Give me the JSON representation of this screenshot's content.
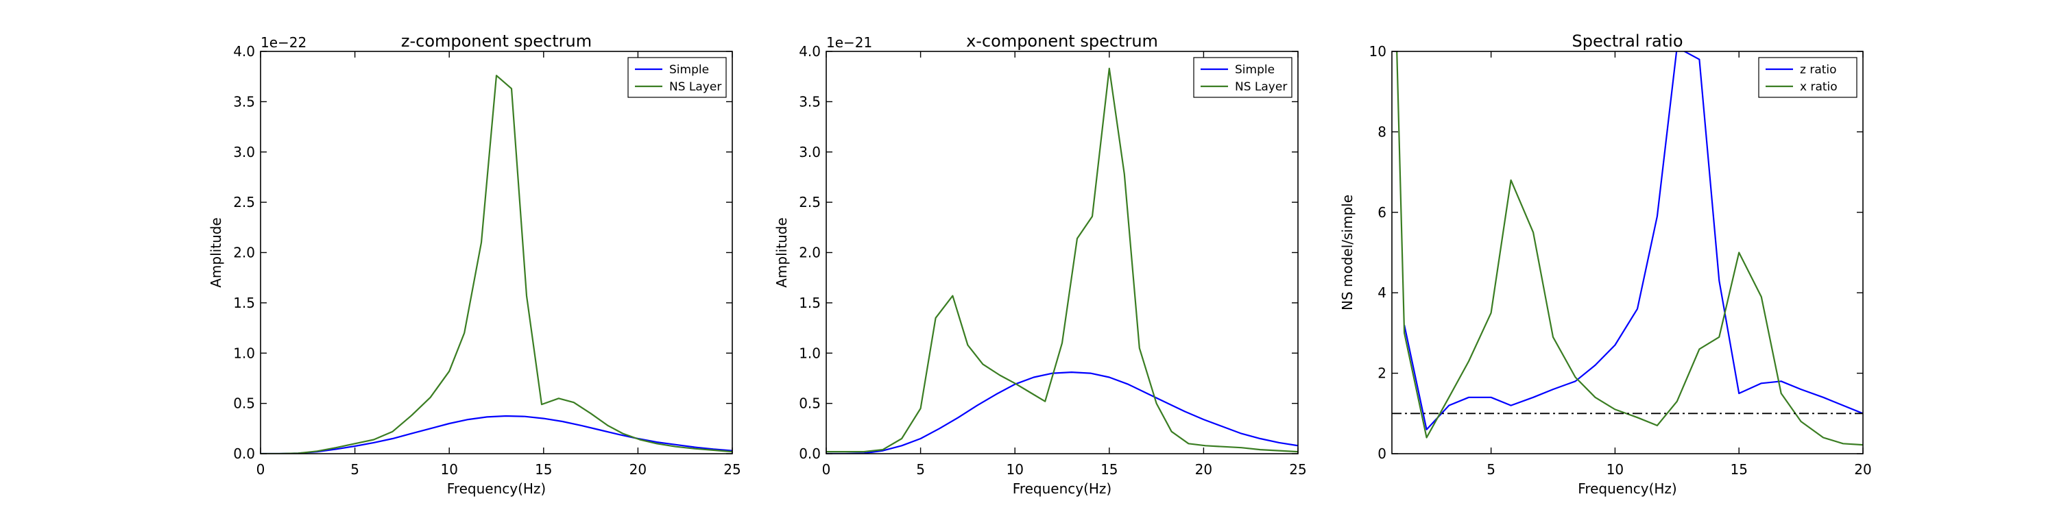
{
  "chart_data": [
    {
      "type": "line",
      "title": "z-component spectrum",
      "xlabel": "Frequency(Hz)",
      "ylabel": "Amplitude",
      "offset_text": "1e−22",
      "xlim": [
        0,
        25
      ],
      "ylim": [
        0,
        4.0
      ],
      "xticks": [
        0,
        5,
        10,
        15,
        20,
        25
      ],
      "xtick_labels": [
        "0",
        "5",
        "10",
        "15",
        "20",
        "25"
      ],
      "yticks": [
        0,
        0.5,
        1.0,
        1.5,
        2.0,
        2.5,
        3.0,
        3.5,
        4.0
      ],
      "ytick_labels": [
        "0.0",
        "0.5",
        "1.0",
        "1.5",
        "2.0",
        "2.5",
        "3.0",
        "3.5",
        "4.0"
      ],
      "legend_position": "top-right",
      "grid": false,
      "series": [
        {
          "name": "Simple",
          "color": "#0000ff",
          "x": [
            0,
            1,
            2,
            3,
            4,
            5,
            6,
            7,
            8,
            9,
            10,
            11,
            12,
            13,
            14,
            15,
            16,
            17,
            18,
            19,
            20,
            21,
            22,
            23,
            24,
            25
          ],
          "y": [
            0.0,
            0.0,
            0.005,
            0.02,
            0.045,
            0.075,
            0.11,
            0.15,
            0.2,
            0.25,
            0.3,
            0.34,
            0.365,
            0.375,
            0.37,
            0.35,
            0.32,
            0.28,
            0.235,
            0.19,
            0.15,
            0.115,
            0.09,
            0.065,
            0.045,
            0.03
          ]
        },
        {
          "name": "NS Layer",
          "color": "#3a7d22",
          "x": [
            0,
            1,
            2,
            3,
            4,
            5,
            6,
            7,
            8,
            9,
            10,
            10.8,
            11.7,
            12.5,
            13.3,
            14.1,
            14.9,
            15.8,
            16.6,
            17.5,
            18.4,
            19.2,
            20.1,
            21,
            22,
            23,
            24,
            25
          ],
          "y": [
            0.0,
            0.0,
            0.005,
            0.025,
            0.06,
            0.1,
            0.14,
            0.22,
            0.38,
            0.56,
            0.82,
            1.2,
            2.1,
            3.76,
            3.63,
            1.57,
            0.49,
            0.55,
            0.51,
            0.4,
            0.28,
            0.2,
            0.14,
            0.1,
            0.07,
            0.05,
            0.035,
            0.02
          ]
        }
      ]
    },
    {
      "type": "line",
      "title": "x-component spectrum",
      "xlabel": "Frequency(Hz)",
      "ylabel": "Amplitude",
      "offset_text": "1e−21",
      "xlim": [
        0,
        25
      ],
      "ylim": [
        0,
        4.0
      ],
      "xticks": [
        0,
        5,
        10,
        15,
        20,
        25
      ],
      "xtick_labels": [
        "0",
        "5",
        "10",
        "15",
        "20",
        "25"
      ],
      "yticks": [
        0,
        0.5,
        1.0,
        1.5,
        2.0,
        2.5,
        3.0,
        3.5,
        4.0
      ],
      "ytick_labels": [
        "0.0",
        "0.5",
        "1.0",
        "1.5",
        "2.0",
        "2.5",
        "3.0",
        "3.5",
        "4.0"
      ],
      "legend_position": "top-right",
      "grid": false,
      "series": [
        {
          "name": "Simple",
          "color": "#0000ff",
          "x": [
            0,
            1,
            2,
            3,
            4,
            5,
            6,
            7,
            8,
            9,
            10,
            11,
            12,
            13,
            14,
            15,
            16,
            17,
            18,
            19,
            20,
            21,
            22,
            23,
            24,
            25
          ],
          "y": [
            0.0,
            0.0,
            0.005,
            0.03,
            0.08,
            0.15,
            0.25,
            0.36,
            0.48,
            0.59,
            0.69,
            0.76,
            0.8,
            0.81,
            0.8,
            0.76,
            0.69,
            0.6,
            0.51,
            0.42,
            0.34,
            0.27,
            0.2,
            0.15,
            0.11,
            0.08
          ]
        },
        {
          "name": "NS Layer",
          "color": "#3a7d22",
          "x": [
            0,
            1,
            2,
            3,
            4,
            5,
            5.8,
            6.7,
            7.5,
            8.3,
            9.2,
            10,
            10.8,
            11.6,
            12.5,
            13.3,
            14.1,
            15,
            15.8,
            16.6,
            17.5,
            18.3,
            19.2,
            20.1,
            21,
            22,
            23,
            24,
            25
          ],
          "y": [
            0.02,
            0.02,
            0.02,
            0.04,
            0.15,
            0.45,
            1.35,
            1.57,
            1.08,
            0.89,
            0.78,
            0.7,
            0.61,
            0.52,
            1.1,
            2.14,
            2.36,
            3.83,
            2.78,
            1.05,
            0.5,
            0.22,
            0.1,
            0.08,
            0.07,
            0.06,
            0.04,
            0.03,
            0.02
          ]
        }
      ]
    },
    {
      "type": "line",
      "title": "Spectral ratio",
      "xlabel": "Frequency(Hz)",
      "ylabel": "NS model/simple",
      "offset_text": "",
      "xlim": [
        1,
        20
      ],
      "ylim": [
        0,
        10
      ],
      "xticks": [
        5,
        10,
        15,
        20
      ],
      "xtick_labels": [
        "5",
        "10",
        "15",
        "20"
      ],
      "yticks": [
        0,
        2,
        4,
        6,
        8,
        10
      ],
      "ytick_labels": [
        "0",
        "2",
        "4",
        "6",
        "8",
        "10"
      ],
      "legend_position": "top-right",
      "grid": false,
      "reference_line": {
        "y": 1.0,
        "style": "dash-dot",
        "color": "#000000"
      },
      "series": [
        {
          "name": "z ratio",
          "color": "#0000ff",
          "x": [
            1.5,
            2.4,
            3.3,
            4.1,
            5,
            5.8,
            6.7,
            7.5,
            8.4,
            9.2,
            10,
            10.9,
            11.7,
            12.5,
            13.4,
            14.2,
            15,
            15.9,
            16.7,
            17.5,
            18.4,
            19.2,
            20
          ],
          "y": [
            3.2,
            0.6,
            1.2,
            1.4,
            1.4,
            1.2,
            1.4,
            1.6,
            1.8,
            2.2,
            2.7,
            3.6,
            5.9,
            10.1,
            9.8,
            4.3,
            1.5,
            1.75,
            1.8,
            1.6,
            1.4,
            1.2,
            1.0
          ]
        },
        {
          "name": "x ratio",
          "color": "#3a7d22",
          "x": [
            1.2,
            1.5,
            2.4,
            3.3,
            4.1,
            5,
            5.8,
            6.7,
            7.5,
            8.4,
            9.2,
            10,
            10.9,
            11.7,
            12.5,
            13.4,
            14.2,
            15,
            15.9,
            16.7,
            17.5,
            18.4,
            19.2,
            20
          ],
          "y": [
            10,
            3.0,
            0.4,
            1.4,
            2.3,
            3.5,
            6.8,
            5.5,
            2.9,
            1.9,
            1.4,
            1.1,
            0.9,
            0.7,
            1.3,
            2.6,
            2.9,
            5.0,
            3.9,
            1.5,
            0.8,
            0.4,
            0.25,
            0.22
          ]
        }
      ]
    }
  ]
}
